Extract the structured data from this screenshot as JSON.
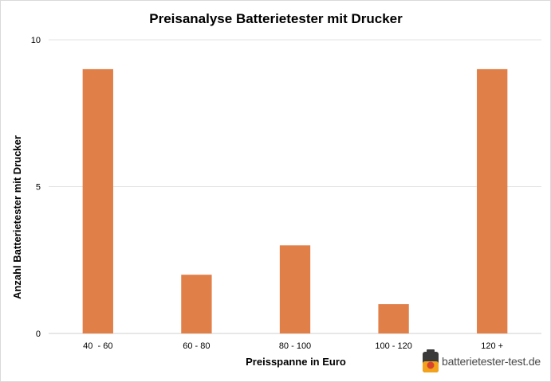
{
  "chart_data": {
    "type": "bar",
    "title": "Preisanalyse Batterietester mit Drucker",
    "xlabel": "Preisspanne in Euro",
    "ylabel": "Anzahl  Batterietester mit Drucker",
    "categories": [
      "40  - 60",
      "60 - 80",
      "80 - 100",
      "100 - 120",
      "120 +"
    ],
    "values": [
      9,
      2,
      3,
      1,
      9
    ],
    "ylim": [
      0,
      10
    ],
    "yticks": [
      0,
      5,
      10
    ],
    "grid": true,
    "legend": "none",
    "bar_color": "#E07F48"
  },
  "logo": {
    "text": "batterietester-test.de",
    "icon": "battery-icon"
  }
}
